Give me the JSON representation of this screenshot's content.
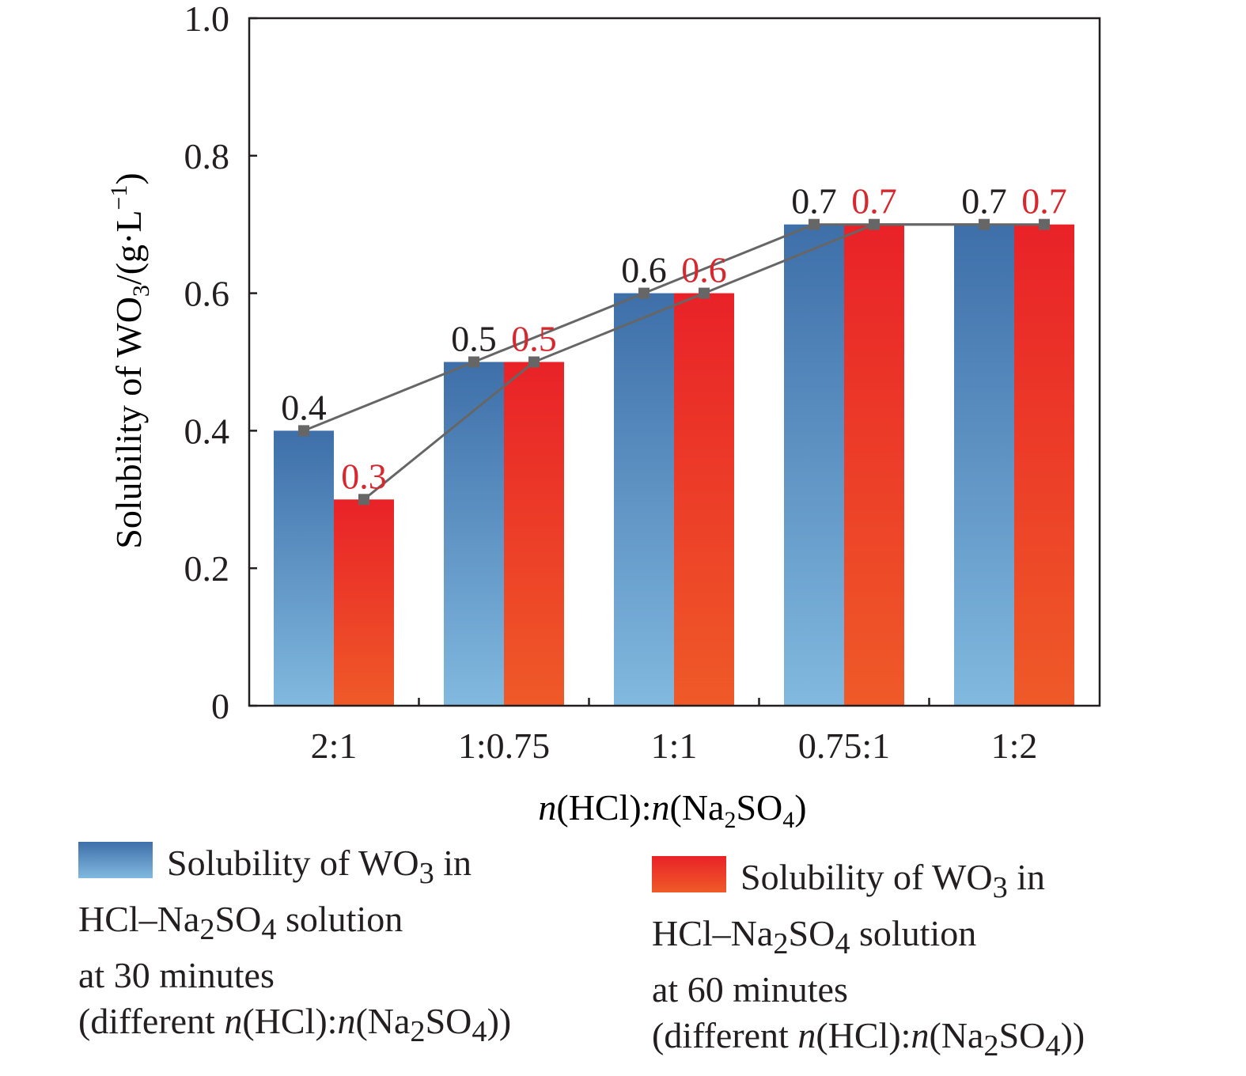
{
  "chart_data": {
    "type": "bar",
    "categories": [
      "2:1",
      "1:0.75",
      "1:1",
      "0.75:1",
      "1:2"
    ],
    "series": [
      {
        "name": "Solubility of WO3 in HCl–Na2SO4 solution at 30 minutes (different n(HCl):n(Na2SO4))",
        "values": [
          0.4,
          0.5,
          0.6,
          0.7,
          0.7
        ],
        "color_top": "#3e6fa9",
        "color_bottom": "#81b9df",
        "label_color": "#231f20"
      },
      {
        "name": "Solubility of WO3 in HCl–Na2SO4 solution at 60 minutes (different n(HCl):n(Na2SO4))",
        "values": [
          0.3,
          0.5,
          0.6,
          0.7,
          0.7
        ],
        "color_top": "#e92228",
        "color_bottom": "#ef5a28",
        "label_color": "#d7282f"
      }
    ],
    "data_labels": {
      "s1": [
        "0.4",
        "0.5",
        "0.6",
        "0.7",
        "0.7"
      ],
      "s2": [
        "0.3",
        "0.5",
        "0.6",
        "0.7",
        "0.7"
      ]
    },
    "overlay_lines": true,
    "line_color": "#666666",
    "ylim": [
      0,
      1.0
    ],
    "yticks": [
      "0",
      "0.2",
      "0.4",
      "0.6",
      "0.8",
      "1.0"
    ],
    "ylabel": {
      "pre": "Solubility of WO",
      "sub": "3",
      "mid": "/(g·L",
      "sup": "−1",
      "post": ")"
    },
    "xlabel": {
      "n1": "n",
      "a": "(HCl):",
      "n2": "n",
      "b": "(Na",
      "sub1": "2",
      "c": "SO",
      "sub2": "4",
      "d": ")"
    },
    "legend_position": "bottom"
  },
  "legend": {
    "s1": {
      "t1": "Solubility of WO",
      "sub1": "3",
      "t2": " in",
      "t3": "HCl–Na",
      "sub2": "2",
      "t4": "SO",
      "sub3": "4",
      "t5": " solution",
      "t6": "at 30 minutes",
      "t7": "(different ",
      "i1": "n",
      "t8": "(HCl):",
      "i2": "n",
      "t9": "(Na",
      "sub4": "2",
      "t10": "SO",
      "sub5": "4",
      "t11": "))"
    },
    "s2": {
      "t1": "Solubility of WO",
      "sub1": "3",
      "t2": " in",
      "t3": "HCl–Na",
      "sub2": "2",
      "t4": "SO",
      "sub3": "4",
      "t5": " solution",
      "t6": "at 60 minutes",
      "t7": "(different ",
      "i1": "n",
      "t8": "(HCl):",
      "i2": "n",
      "t9": "(Na",
      "sub4": "2",
      "t10": "SO",
      "sub5": "4",
      "t11": "))"
    }
  }
}
